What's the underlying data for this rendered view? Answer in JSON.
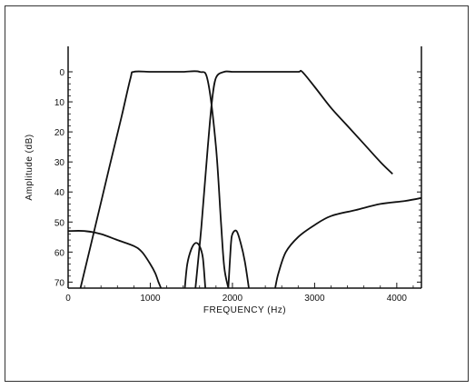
{
  "chart_data": {
    "type": "line",
    "title": "",
    "xlabel": "FREQUENCY (Hz)",
    "ylabel": "Amplitude (dB)",
    "xlim": [
      0,
      4300
    ],
    "ylim": [
      0,
      72
    ],
    "y_inverted": true,
    "x_ticks": [
      0,
      1000,
      2000,
      3000,
      4000
    ],
    "y_ticks": [
      0,
      10,
      20,
      30,
      40,
      50,
      60,
      70
    ],
    "x_tick_labels": [
      "0",
      "1000",
      "2000",
      "3000",
      "4000"
    ],
    "y_tick_labels": [
      "0",
      "10",
      "20",
      "30",
      "40",
      "50",
      "60",
      "70"
    ],
    "grid": false,
    "legend": "none",
    "line_color": "#111111",
    "series": [
      {
        "x": [
          150,
          300,
          500,
          650,
          760,
          800,
          1000,
          1200,
          1400,
          1600,
          1700,
          1800,
          1860,
          1900,
          1950
        ],
        "y": [
          72,
          55,
          32,
          15,
          2,
          0,
          0,
          0,
          0,
          0,
          3,
          25,
          50,
          65,
          72
        ]
      },
      {
        "x": [
          1550,
          1620,
          1700,
          1750,
          1800,
          1900,
          2000,
          2200,
          2400,
          2600,
          2800,
          2850,
          3000,
          3200,
          3400,
          3600,
          3800,
          3950
        ],
        "y": [
          72,
          52,
          25,
          10,
          2,
          0,
          0,
          0,
          0,
          0,
          0,
          0,
          5,
          12,
          18,
          24,
          30,
          34
        ]
      },
      {
        "x": [
          0,
          200,
          400,
          600,
          800,
          900,
          1000,
          1060,
          1100,
          1130
        ],
        "y": [
          53,
          53,
          54,
          56,
          58,
          60,
          64,
          67,
          70,
          72
        ]
      },
      {
        "x": [
          1420,
          1450,
          1500,
          1550,
          1600,
          1640,
          1670
        ],
        "y": [
          72,
          64,
          59,
          57,
          58,
          62,
          72
        ]
      },
      {
        "x": [
          1950,
          1980,
          2000,
          2050,
          2100,
          2150,
          2200
        ],
        "y": [
          72,
          58,
          54,
          53,
          57,
          63,
          72
        ]
      },
      {
        "x": [
          2520,
          2560,
          2650,
          2800,
          3000,
          3200,
          3500,
          3800,
          4100,
          4300
        ],
        "y": [
          72,
          67,
          60,
          55,
          51,
          48,
          46,
          44,
          43,
          42
        ]
      }
    ]
  }
}
